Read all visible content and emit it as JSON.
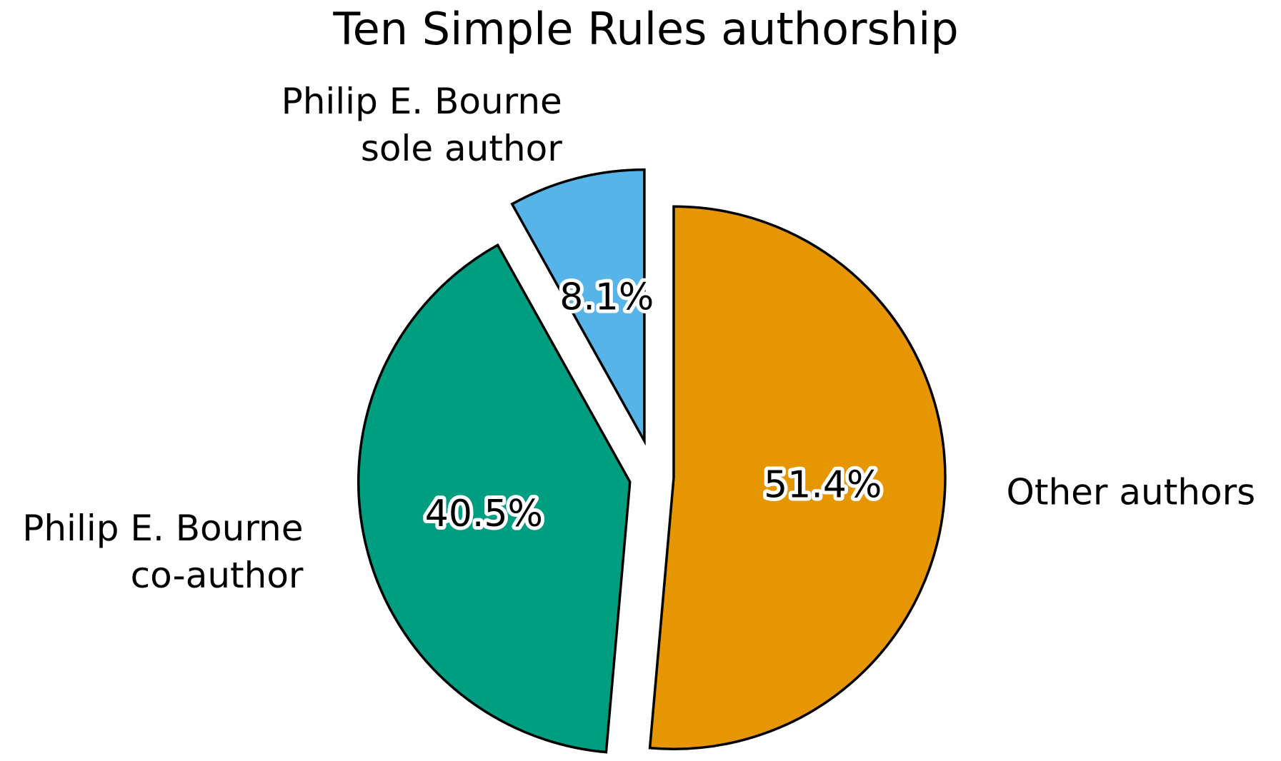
{
  "chart_data": {
    "type": "pie",
    "title": "Ten Simple Rules authorship",
    "start_angle_deg": 90,
    "direction": "counterclockwise",
    "exploded": true,
    "slices": [
      {
        "label": [
          "Philip E. Bourne",
          "sole author"
        ],
        "value": 8.1,
        "pct_label": "8.1%",
        "color": "#56B4E9"
      },
      {
        "label": [
          "Philip E. Bourne",
          "co-author"
        ],
        "value": 40.5,
        "pct_label": "40.5%",
        "color": "#009E80"
      },
      {
        "label": [
          "Other authors"
        ],
        "value": 51.4,
        "pct_label": "51.4%",
        "color": "#E69600"
      }
    ]
  }
}
